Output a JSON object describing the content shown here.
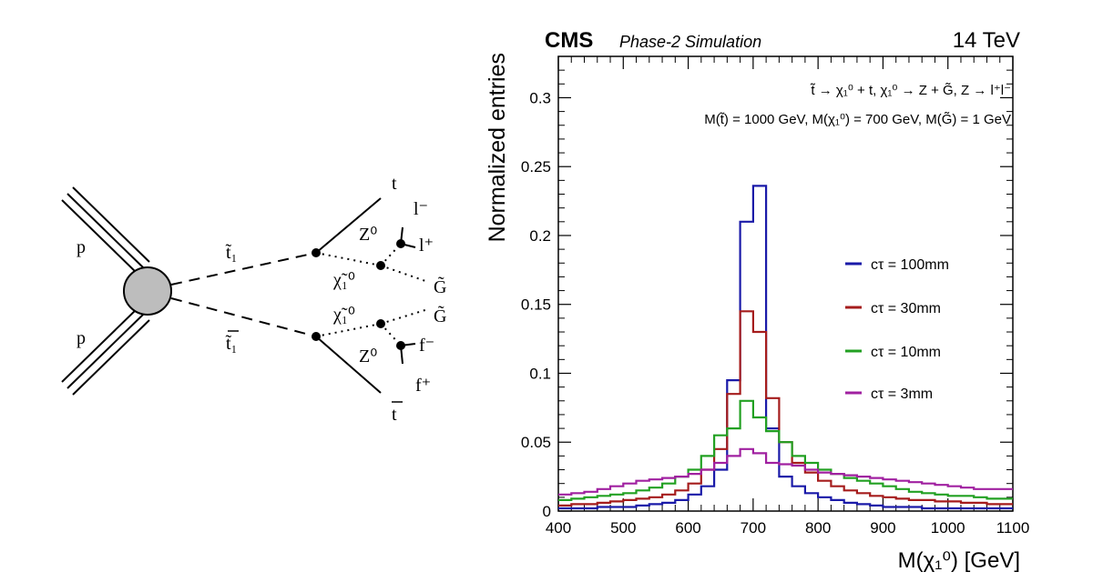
{
  "feynman": {
    "proton_top": "p",
    "proton_bottom": "p",
    "stop": "t̃₁",
    "antistop": "t̃₁",
    "top": "t",
    "antitop": "t",
    "neutralino_upper": "χ̃₁⁰",
    "neutralino_lower": "χ̃₁⁰",
    "z_upper": "Z⁰",
    "z_lower": "Z⁰",
    "lepton_minus": "l⁻",
    "lepton_plus": "l⁺",
    "gravitino_upper": "G̃",
    "gravitino_lower": "G̃",
    "fermion_minus": "f⁻",
    "fermion_plus": "f⁺"
  },
  "plot": {
    "experiment": "CMS",
    "subtitle": "Phase-2 Simulation",
    "energy": "14 TeV",
    "process_line": "t̃ → χ₁⁰ + t, χ₁⁰ → Z + G̃, Z → l⁺l⁻",
    "mass_line": "M(t̃) = 1000 GeV, M(χ₁⁰) = 700 GeV, M(G̃) = 1 GeV"
  },
  "chart_data": {
    "type": "line",
    "xlabel": "M(χ₁⁰) [GeV]",
    "ylabel": "Normalized entries",
    "xlim": [
      400,
      1100
    ],
    "ylim": [
      0,
      0.33
    ],
    "x_ticks": [
      "400",
      "500",
      "600",
      "700",
      "800",
      "900",
      "1000",
      "1100"
    ],
    "y_ticks": [
      "0",
      "0.05",
      "0.1",
      "0.15",
      "0.2",
      "0.25",
      "0.3"
    ],
    "x_tick_values": [
      400,
      500,
      600,
      700,
      800,
      900,
      1000,
      1100
    ],
    "y_tick_values": [
      0,
      0.05,
      0.1,
      0.15,
      0.2,
      0.25,
      0.3
    ],
    "bin_edges": [
      400,
      420,
      440,
      460,
      480,
      500,
      520,
      540,
      560,
      580,
      600,
      620,
      640,
      660,
      680,
      700,
      720,
      740,
      760,
      780,
      800,
      820,
      840,
      860,
      880,
      900,
      920,
      940,
      960,
      980,
      1000,
      1020,
      1040,
      1060,
      1080,
      1100
    ],
    "legend_position": "right",
    "series": [
      {
        "name": "cτ = 100mm",
        "color": "#1a1aa8",
        "values": [
          0.002,
          0.002,
          0.002,
          0.003,
          0.003,
          0.003,
          0.004,
          0.005,
          0.006,
          0.008,
          0.012,
          0.018,
          0.03,
          0.095,
          0.21,
          0.236,
          0.06,
          0.025,
          0.018,
          0.013,
          0.01,
          0.008,
          0.006,
          0.005,
          0.004,
          0.003,
          0.003,
          0.003,
          0.002,
          0.002,
          0.002,
          0.002,
          0.002,
          0.002,
          0.002
        ]
      },
      {
        "name": "cτ = 30mm",
        "color": "#a51c1c",
        "values": [
          0.004,
          0.005,
          0.005,
          0.006,
          0.007,
          0.008,
          0.009,
          0.01,
          0.012,
          0.015,
          0.02,
          0.03,
          0.045,
          0.085,
          0.145,
          0.13,
          0.082,
          0.05,
          0.035,
          0.028,
          0.022,
          0.018,
          0.015,
          0.013,
          0.011,
          0.01,
          0.009,
          0.008,
          0.008,
          0.007,
          0.007,
          0.006,
          0.006,
          0.005,
          0.005
        ]
      },
      {
        "name": "cτ = 10mm",
        "color": "#22a022",
        "values": [
          0.008,
          0.009,
          0.01,
          0.011,
          0.012,
          0.013,
          0.015,
          0.017,
          0.02,
          0.025,
          0.03,
          0.04,
          0.055,
          0.06,
          0.08,
          0.068,
          0.058,
          0.05,
          0.04,
          0.035,
          0.03,
          0.027,
          0.024,
          0.022,
          0.02,
          0.018,
          0.016,
          0.014,
          0.013,
          0.012,
          0.011,
          0.011,
          0.01,
          0.009,
          0.009
        ]
      },
      {
        "name": "cτ = 3mm",
        "color": "#a020a0",
        "values": [
          0.012,
          0.013,
          0.014,
          0.016,
          0.018,
          0.02,
          0.022,
          0.023,
          0.024,
          0.025,
          0.027,
          0.03,
          0.035,
          0.04,
          0.045,
          0.042,
          0.035,
          0.034,
          0.033,
          0.03,
          0.028,
          0.027,
          0.026,
          0.025,
          0.024,
          0.023,
          0.022,
          0.021,
          0.02,
          0.019,
          0.018,
          0.017,
          0.016,
          0.016,
          0.016
        ]
      }
    ]
  }
}
